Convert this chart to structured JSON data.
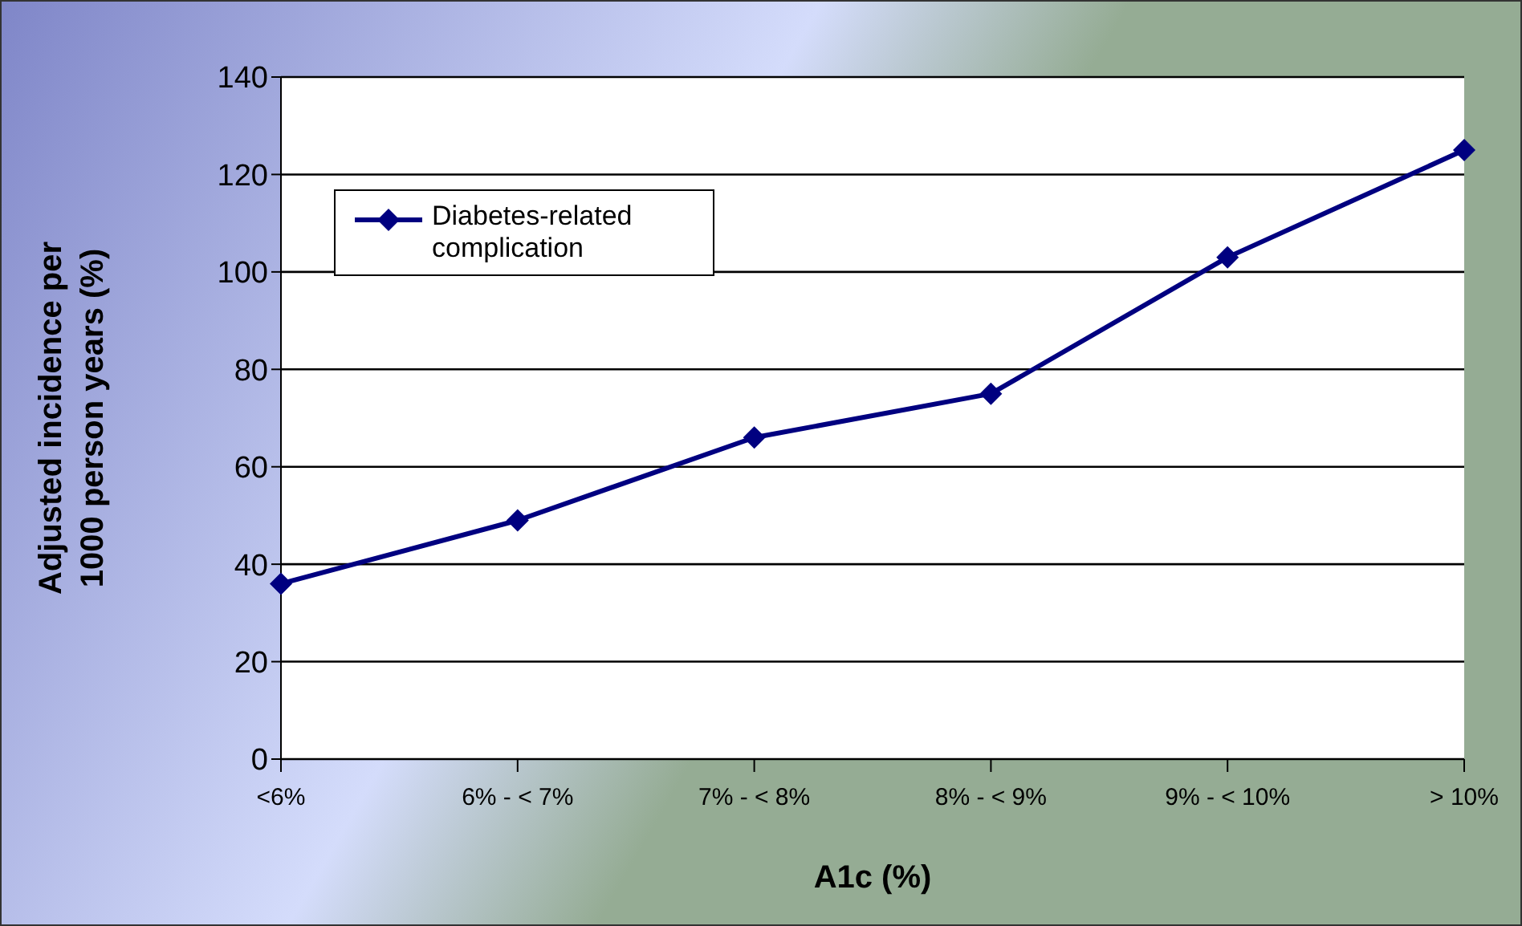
{
  "chart_data": {
    "type": "line",
    "xlabel": "A1c (%)",
    "ylabel": "Adjusted incidence per 1000 person years (%)",
    "categories": [
      "<6%",
      "6% - < 7%",
      "7% - < 8%",
      "8% - < 9%",
      "9% - < 10%",
      "> 10%"
    ],
    "series": [
      {
        "name": "Diabetes-related complication",
        "color": "#000080",
        "values": [
          36,
          49,
          66,
          75,
          103,
          125
        ]
      }
    ],
    "ylim": [
      0,
      140
    ],
    "yticks": [
      0,
      20,
      40,
      60,
      80,
      100,
      120,
      140
    ],
    "grid": "y",
    "legend": "top left",
    "marker": "diamond",
    "line_style": "solid"
  }
}
